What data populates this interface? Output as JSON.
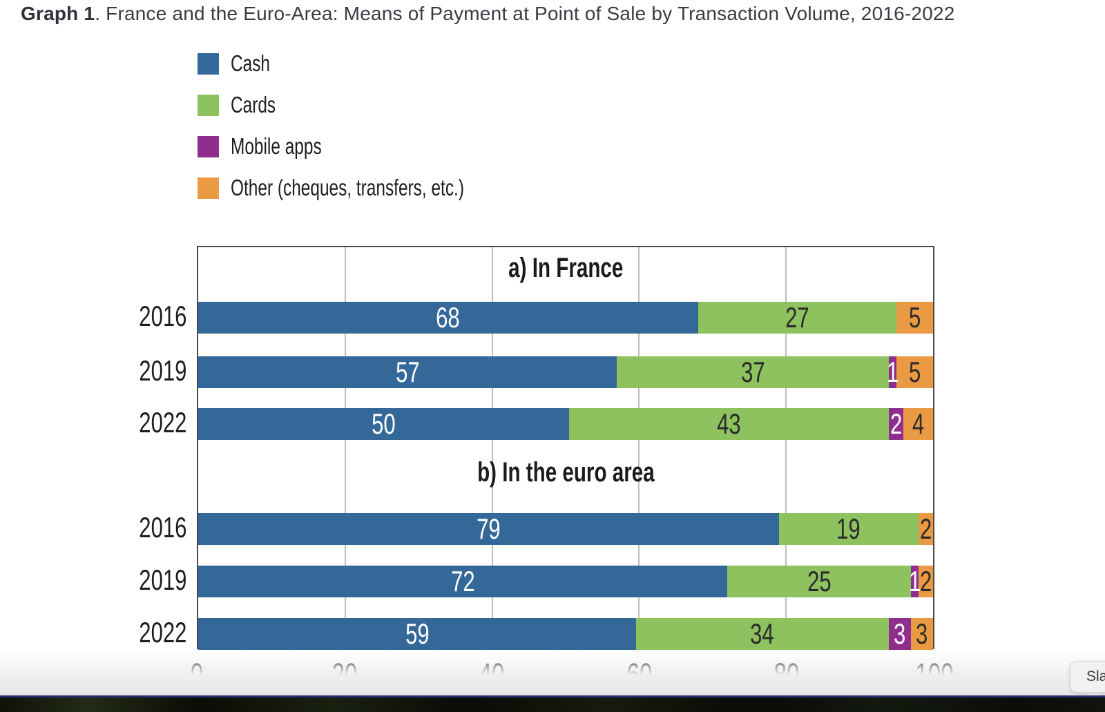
{
  "header": {
    "title_prefix": "Graph 1",
    "title_rest": ". France and the Euro-Area: Means of Payment at Point of Sale by Transaction Volume, 2016-2022"
  },
  "tooltip": {
    "label": "Sla"
  },
  "chart_data": {
    "type": "bar",
    "orientation": "horizontal",
    "stacked": true,
    "title": "Graph 1. France and the Euro-Area: Means of Payment at Point of Sale by Transaction Volume, 2016-2022",
    "xlabel": "",
    "ylabel": "",
    "xlim": [
      0,
      100
    ],
    "xticks": [
      0,
      20,
      40,
      60,
      80,
      100
    ],
    "grid": "vertical",
    "legend_position": "top-left",
    "palette": {
      "cash": {
        "fill": "#336899",
        "label_color": "#ffffff"
      },
      "cards": {
        "fill": "#8dc25e",
        "label_color": "#2b2b2b"
      },
      "mobile": {
        "fill": "#8e2f90",
        "label_color": "#ffffff"
      },
      "other": {
        "fill": "#ea9a43",
        "label_color": "#2b2b2b"
      }
    },
    "legend": [
      {
        "key": "cash",
        "label": "Cash"
      },
      {
        "key": "cards",
        "label": "Cards"
      },
      {
        "key": "mobile",
        "label": "Mobile apps"
      },
      {
        "key": "other",
        "label": "Other (cheques, transfers, etc.)"
      }
    ],
    "panels": [
      {
        "title": "a) In France",
        "categories": [
          "2016",
          "2019",
          "2022"
        ],
        "series": [
          {
            "key": "cash",
            "name": "Cash",
            "values": [
              68,
              57,
              50
            ]
          },
          {
            "key": "cards",
            "name": "Cards",
            "values": [
              27,
              37,
              43
            ]
          },
          {
            "key": "mobile",
            "name": "Mobile apps",
            "values": [
              0,
              1,
              2
            ]
          },
          {
            "key": "other",
            "name": "Other (cheques, transfers, etc.)",
            "values": [
              5,
              5,
              4
            ]
          }
        ]
      },
      {
        "title": "b) In the euro area",
        "categories": [
          "2016",
          "2019",
          "2022"
        ],
        "series": [
          {
            "key": "cash",
            "name": "Cash",
            "values": [
              79,
              72,
              59
            ]
          },
          {
            "key": "cards",
            "name": "Cards",
            "values": [
              19,
              25,
              34
            ]
          },
          {
            "key": "mobile",
            "name": "Mobile apps",
            "values": [
              0,
              1,
              3
            ]
          },
          {
            "key": "other",
            "name": "Other (cheques, transfers, etc.)",
            "values": [
              2,
              2,
              3
            ]
          }
        ]
      }
    ]
  }
}
